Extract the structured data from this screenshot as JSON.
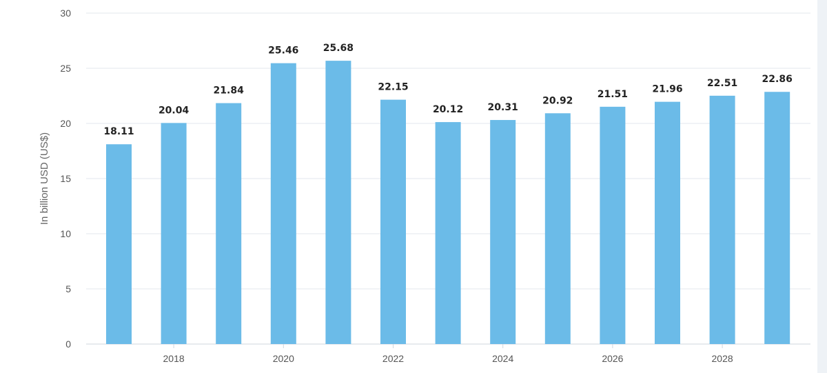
{
  "chart_data": {
    "type": "bar",
    "categories": [
      "2017",
      "2018",
      "2019",
      "2020",
      "2021",
      "2022",
      "2023",
      "2024",
      "2025",
      "2026",
      "2027",
      "2028",
      "2029"
    ],
    "values": [
      18.11,
      20.04,
      21.84,
      25.46,
      25.68,
      22.15,
      20.12,
      20.31,
      20.92,
      21.51,
      21.96,
      22.51,
      22.86
    ],
    "data_labels": [
      "18.11",
      "20.04",
      "21.84",
      "25.46",
      "25.68",
      "22.15",
      "20.12",
      "20.31",
      "20.92",
      "21.51",
      "21.96",
      "22.51",
      "22.86"
    ],
    "x_tick_labels": [
      "2018",
      "2020",
      "2022",
      "2024",
      "2026",
      "2028"
    ],
    "y_ticks": [
      "0",
      "5",
      "10",
      "15",
      "20",
      "25",
      "30"
    ],
    "ylabel": "In billion USD (US$)",
    "ylim": [
      0,
      30
    ],
    "grid": true,
    "legend": "none",
    "bar_color": "#6bbbe8",
    "grid_color": "#e3e7ec"
  }
}
